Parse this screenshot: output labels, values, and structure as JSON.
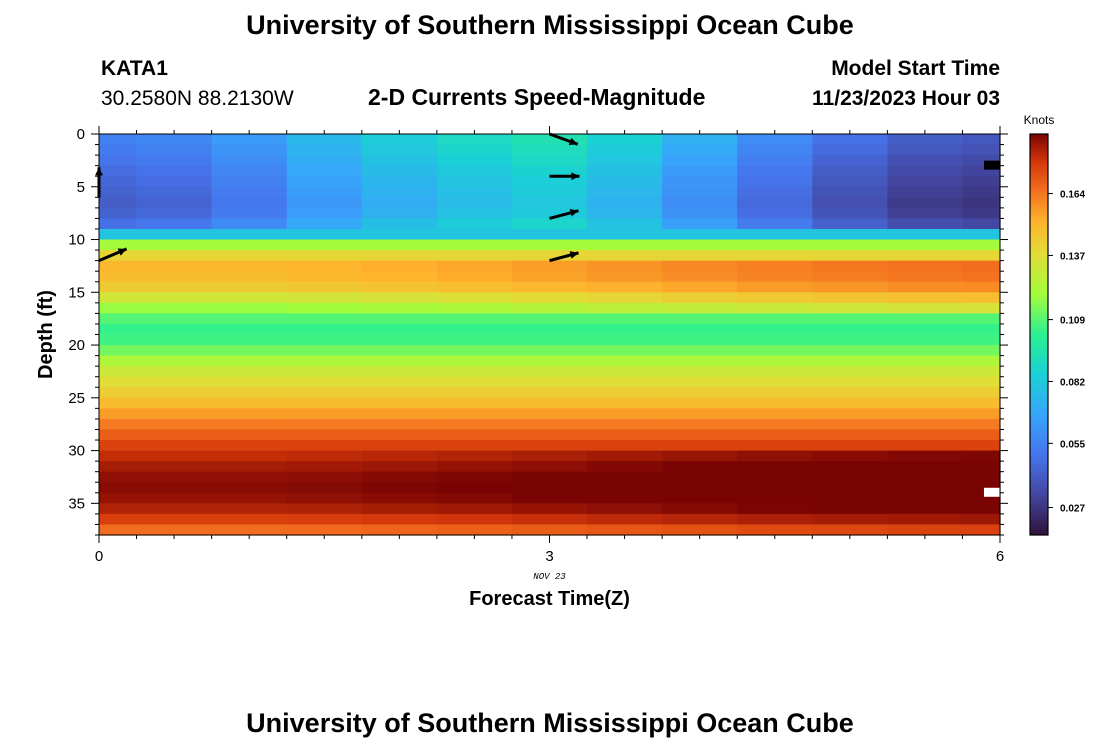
{
  "page": {
    "title": "University of Southern Mississippi Ocean Cube",
    "title_bottom": "University of Southern Mississippi Ocean Cube",
    "station": "KATA1",
    "location": "30.2580N  88.2130W",
    "plot_title": "2-D Currents Speed-Magnitude",
    "model_start_label": "Model Start Time",
    "model_start_value": "11/23/2023 Hour 03",
    "date_label": "NOV 23"
  },
  "chart_data": {
    "type": "heatmap",
    "title": "2-D Currents Speed-Magnitude",
    "xlabel": "Forecast Time(Z)",
    "ylabel": "Depth (ft)",
    "xlim": [
      0,
      6
    ],
    "ylim": [
      38,
      0
    ],
    "x_ticks": [
      "0",
      "3",
      "6"
    ],
    "y_ticks": [
      "0",
      "5",
      "10",
      "15",
      "20",
      "25",
      "30",
      "35"
    ],
    "colorbar": {
      "label": "Knots",
      "ticks": [
        "0.164",
        "0.137",
        "0.109",
        "0.082",
        "0.055",
        "0.027"
      ],
      "tick_values": [
        0.164,
        0.137,
        0.109,
        0.082,
        0.055,
        0.027
      ],
      "range": [
        0.015,
        0.19
      ]
    },
    "depth_profile": {
      "depths_ft": [
        0,
        4,
        7,
        9,
        10,
        11,
        12,
        13,
        14,
        15,
        16,
        17,
        18,
        19,
        20,
        21,
        22,
        23,
        24,
        25,
        26,
        27,
        28,
        29,
        30,
        31,
        32,
        33,
        34,
        35,
        36,
        37,
        38
      ],
      "speed_knots": [
        0.055,
        0.045,
        0.04,
        0.05,
        0.11,
        0.13,
        0.15,
        0.15,
        0.148,
        0.14,
        0.125,
        0.112,
        0.105,
        0.103,
        0.108,
        0.118,
        0.128,
        0.135,
        0.14,
        0.146,
        0.152,
        0.16,
        0.166,
        0.172,
        0.178,
        0.182,
        0.186,
        0.188,
        0.188,
        0.185,
        0.18,
        0.172,
        0.16
      ]
    },
    "time_anomaly": {
      "times": [
        0,
        0.5,
        1,
        1.5,
        2,
        2.5,
        3,
        3.5,
        4,
        4.5,
        5,
        5.5,
        6
      ],
      "upper_layer": [
        0.0,
        0.003,
        0.01,
        0.022,
        0.03,
        0.036,
        0.04,
        0.032,
        0.018,
        0.005,
        -0.005,
        -0.012,
        -0.015
      ],
      "lower_layer": [
        0.0,
        0.0,
        0.0,
        0.002,
        0.005,
        0.008,
        0.012,
        0.016,
        0.02,
        0.024,
        0.027,
        0.03,
        0.032
      ]
    },
    "vectors": [
      {
        "time": 0,
        "depth_ft": 6,
        "direction_deg": 0
      },
      {
        "time": 0,
        "depth_ft": 12,
        "direction_deg": 67
      },
      {
        "time": 3,
        "depth_ft": 0,
        "direction_deg": 110
      },
      {
        "time": 3,
        "depth_ft": 4,
        "direction_deg": 90
      },
      {
        "time": 3,
        "depth_ft": 8,
        "direction_deg": 75
      },
      {
        "time": 3,
        "depth_ft": 12,
        "direction_deg": 75
      }
    ],
    "missing_cells": [
      {
        "time": 5.9,
        "depth_ft": 3,
        "color": "#000000"
      },
      {
        "time": 5.9,
        "depth_ft": 34,
        "color": "#ffffff"
      }
    ]
  }
}
